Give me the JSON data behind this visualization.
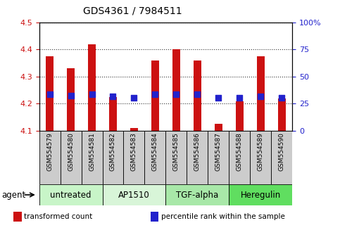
{
  "title": "GDS4361 / 7984511",
  "samples": [
    "GSM554579",
    "GSM554580",
    "GSM554581",
    "GSM554582",
    "GSM554583",
    "GSM554584",
    "GSM554585",
    "GSM554586",
    "GSM554587",
    "GSM554588",
    "GSM554589",
    "GSM554590"
  ],
  "red_values": [
    4.375,
    4.33,
    4.42,
    4.225,
    4.11,
    4.36,
    4.4,
    4.36,
    4.125,
    4.21,
    4.375,
    4.22
  ],
  "blue_values": [
    4.235,
    4.23,
    4.235,
    4.228,
    4.222,
    4.235,
    4.235,
    4.235,
    4.222,
    4.222,
    4.228,
    4.222
  ],
  "ylim_left": [
    4.1,
    4.5
  ],
  "ylim_right": [
    0,
    100
  ],
  "yticks_left": [
    4.1,
    4.2,
    4.3,
    4.4,
    4.5
  ],
  "yticks_right": [
    0,
    25,
    50,
    75,
    100
  ],
  "ytick_labels_right": [
    "0",
    "25",
    "50",
    "75",
    "100%"
  ],
  "groups": [
    {
      "label": "untreated",
      "start": 0,
      "end": 3,
      "color": "#c8f5c8"
    },
    {
      "label": "AP1510",
      "start": 3,
      "end": 6,
      "color": "#d8f5d8"
    },
    {
      "label": "TGF-alpha",
      "start": 6,
      "end": 9,
      "color": "#a8e8a8"
    },
    {
      "label": "Heregulin",
      "start": 9,
      "end": 12,
      "color": "#60de60"
    }
  ],
  "bar_color": "#cc1111",
  "dot_color": "#2222cc",
  "bar_width": 0.35,
  "dot_size": 28,
  "baseline": 4.1,
  "left_tick_color": "#cc1111",
  "right_tick_color": "#2222cc",
  "legend_items": [
    {
      "color": "#cc1111",
      "label": "transformed count"
    },
    {
      "color": "#2222cc",
      "label": "percentile rank within the sample"
    }
  ],
  "agent_label": "agent",
  "grid_linestyle": "dotted",
  "grid_color": "black",
  "grid_alpha": 0.8,
  "title_fontsize": 10,
  "tick_fontsize": 8,
  "sample_fontsize": 6.5,
  "group_label_fontsize": 8.5
}
